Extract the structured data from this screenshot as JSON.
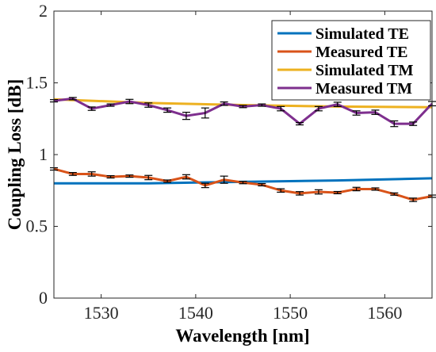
{
  "chart_data": {
    "type": "line",
    "title": "",
    "xlabel": "Wavelength [nm]",
    "ylabel": "Coupling Loss [dB]",
    "xlim": [
      1525,
      1565
    ],
    "ylim": [
      0,
      2
    ],
    "x_ticks": [
      1530,
      1540,
      1550,
      1560
    ],
    "y_ticks": [
      0,
      0.5,
      1,
      1.5,
      2
    ],
    "x_tick_labels": [
      "1530",
      "1540",
      "1550",
      "1560"
    ],
    "y_tick_labels": [
      "0",
      "0.5",
      "1",
      "1.5",
      "2"
    ],
    "grid": false,
    "legend_position": "top-right",
    "series": [
      {
        "name": "Simulated TE",
        "color": "#0072BD",
        "x": [
          1525,
          1535,
          1545,
          1555,
          1565
        ],
        "y": [
          0.8,
          0.8,
          0.81,
          0.82,
          0.835
        ]
      },
      {
        "name": "Measured TE",
        "color": "#D95319",
        "x": [
          1525,
          1527,
          1529,
          1531,
          1533,
          1535,
          1537,
          1539,
          1541,
          1543,
          1545,
          1547,
          1549,
          1551,
          1553,
          1555,
          1557,
          1559,
          1561,
          1563,
          1565
        ],
        "y": [
          0.9,
          0.865,
          0.865,
          0.845,
          0.85,
          0.84,
          0.815,
          0.845,
          0.785,
          0.825,
          0.805,
          0.79,
          0.75,
          0.73,
          0.74,
          0.735,
          0.76,
          0.76,
          0.725,
          0.685,
          0.71
        ],
        "err": [
          0.008,
          0.01,
          0.015,
          0.008,
          0.008,
          0.015,
          0.008,
          0.015,
          0.015,
          0.025,
          0.008,
          0.008,
          0.012,
          0.012,
          0.015,
          0.008,
          0.012,
          0.008,
          0.008,
          0.012,
          0.008
        ]
      },
      {
        "name": "Simulated TM",
        "color": "#EDB120",
        "x": [
          1525,
          1535,
          1545,
          1555,
          1565
        ],
        "y": [
          1.385,
          1.36,
          1.345,
          1.335,
          1.33
        ]
      },
      {
        "name": "Measured TM",
        "color": "#7E2F8E",
        "x": [
          1525,
          1527,
          1529,
          1531,
          1533,
          1535,
          1537,
          1539,
          1541,
          1543,
          1545,
          1547,
          1549,
          1551,
          1553,
          1555,
          1557,
          1559,
          1561,
          1563,
          1565
        ],
        "y": [
          1.375,
          1.39,
          1.32,
          1.345,
          1.37,
          1.345,
          1.31,
          1.27,
          1.29,
          1.355,
          1.335,
          1.345,
          1.32,
          1.215,
          1.32,
          1.35,
          1.29,
          1.295,
          1.215,
          1.215,
          1.355
        ],
        "err": [
          0.008,
          0.008,
          0.012,
          0.008,
          0.015,
          0.015,
          0.015,
          0.025,
          0.035,
          0.012,
          0.008,
          0.008,
          0.015,
          0.008,
          0.015,
          0.015,
          0.015,
          0.015,
          0.02,
          0.012,
          0.015
        ]
      }
    ]
  }
}
